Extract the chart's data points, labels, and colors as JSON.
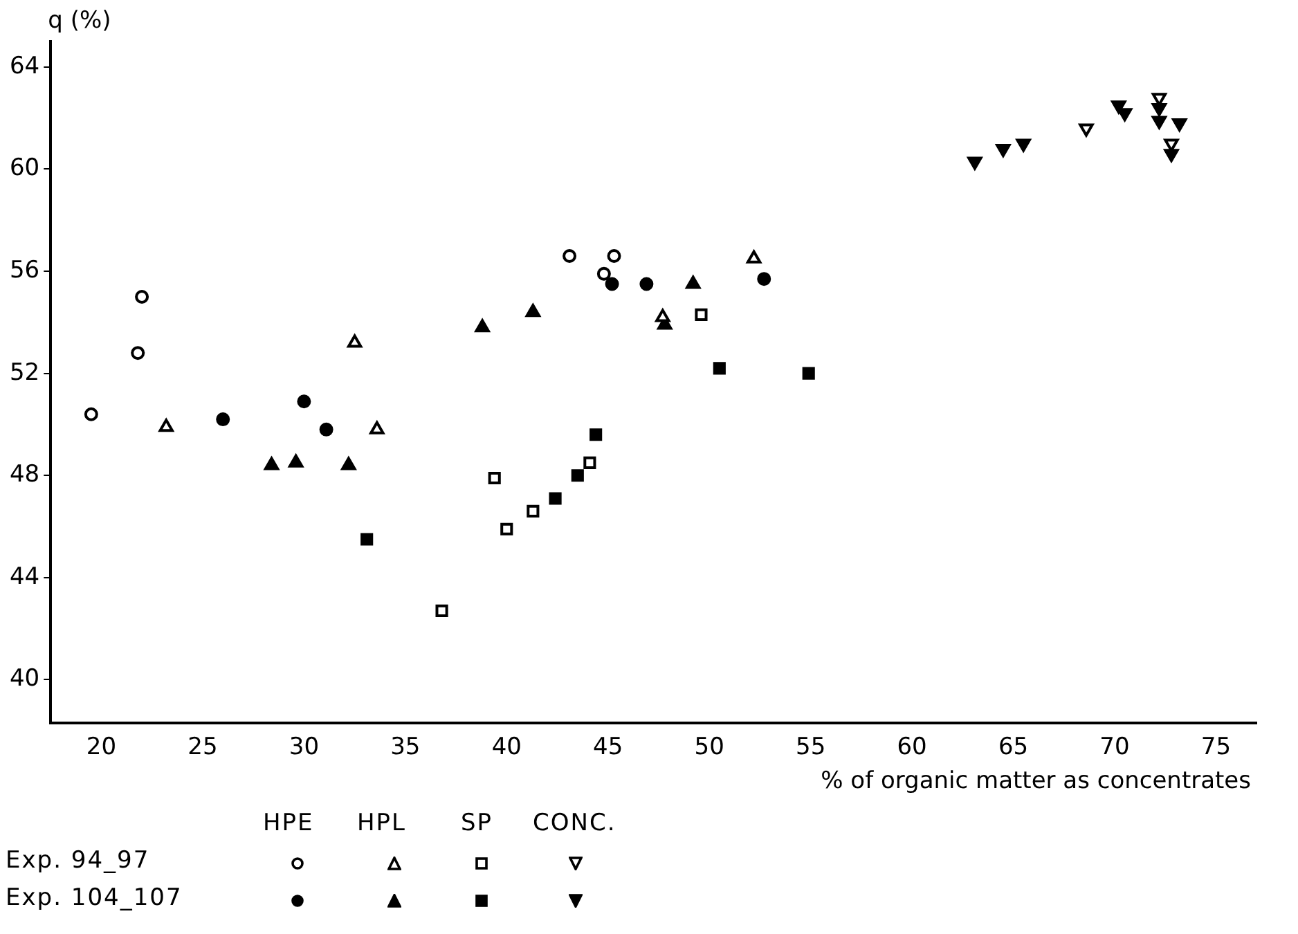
{
  "chart_data": {
    "type": "scatter",
    "xlabel": "% of organic matter as concentrates",
    "ylabel": "q (%)",
    "xlim": [
      17.5,
      77
    ],
    "xticks": [
      20,
      25,
      30,
      35,
      40,
      45,
      50,
      55,
      60,
      65,
      70,
      75
    ],
    "ylim": [
      38.3,
      65
    ],
    "yticks": [
      40,
      44,
      48,
      52,
      56,
      60,
      64
    ],
    "grid": false,
    "legend": false,
    "annotations": [
      "HPE",
      "HPL",
      "SP",
      "CONC.",
      "Exp. 94_97",
      "Exp. 104_107"
    ],
    "series": [
      {
        "color": "#000000",
        "marker": "circle-open",
        "x": [
          19.5,
          21.8,
          22.0,
          43.1,
          45.3,
          44.8
        ],
        "values": [
          50.4,
          52.8,
          55.0,
          56.6,
          56.6,
          55.9
        ]
      },
      {
        "color": "#000000",
        "marker": "triangle-open",
        "x": [
          23.2,
          32.5,
          33.6,
          47.7,
          52.2
        ],
        "values": [
          49.9,
          53.2,
          49.8,
          54.2,
          56.5
        ]
      },
      {
        "color": "#000000",
        "marker": "square-open",
        "x": [
          36.8,
          39.4,
          40.0,
          41.3,
          44.1,
          49.6
        ],
        "values": [
          42.7,
          47.9,
          45.9,
          46.6,
          48.5,
          54.3
        ]
      },
      {
        "color": "#000000",
        "marker": "triangle-down-open",
        "x": [
          68.6,
          72.2,
          72.8
        ],
        "values": [
          61.6,
          62.8,
          61.0
        ]
      },
      {
        "color": "#000000",
        "marker": "circle",
        "x": [
          26.0,
          30.0,
          31.1,
          45.2,
          46.9,
          52.7
        ],
        "values": [
          50.2,
          50.9,
          49.8,
          55.5,
          55.5,
          55.7
        ]
      },
      {
        "color": "#000000",
        "marker": "triangle",
        "x": [
          28.4,
          29.6,
          32.2,
          38.8,
          41.3,
          47.8,
          49.2
        ],
        "values": [
          48.4,
          48.5,
          48.4,
          53.8,
          54.4,
          53.9,
          55.5
        ]
      },
      {
        "color": "#000000",
        "marker": "square",
        "x": [
          33.1,
          42.4,
          43.5,
          44.4,
          50.5,
          54.9
        ],
        "values": [
          45.5,
          47.1,
          48.0,
          49.6,
          52.2,
          52.0
        ]
      },
      {
        "color": "#000000",
        "marker": "triangle-down",
        "x": [
          63.1,
          64.5,
          65.5,
          70.2,
          70.5,
          72.2,
          72.2,
          73.2,
          72.8
        ],
        "values": [
          60.3,
          60.8,
          61.0,
          62.5,
          62.2,
          62.4,
          61.9,
          61.8,
          60.6
        ]
      }
    ]
  }
}
